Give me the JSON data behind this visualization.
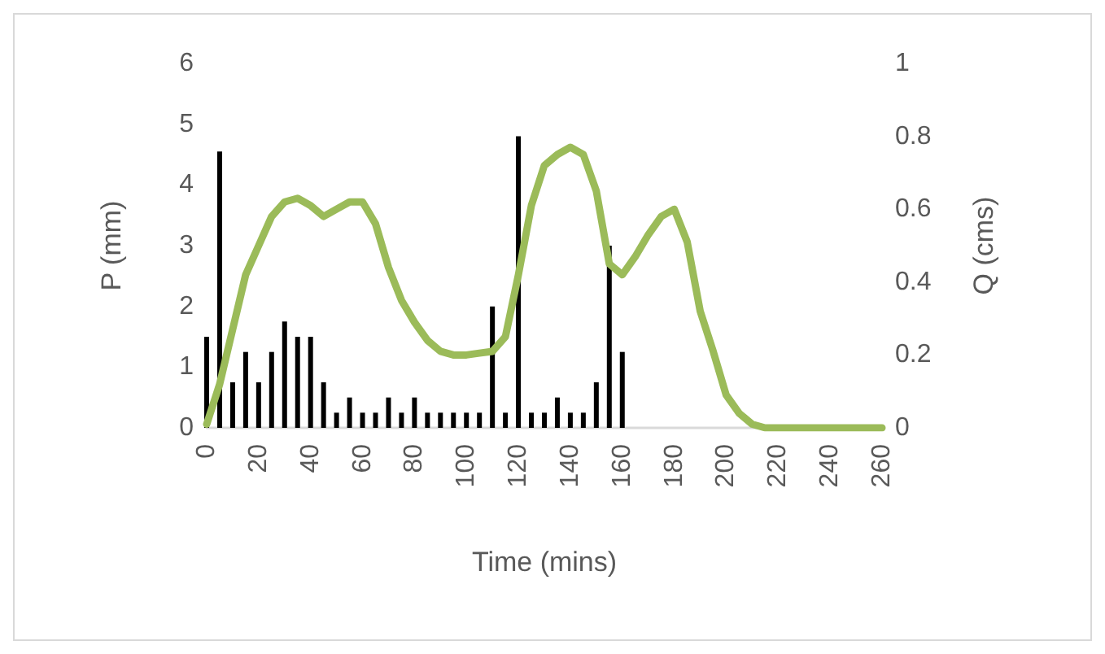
{
  "chart_data": {
    "type": "bar",
    "xlabel": "Time (mins)",
    "ylabel": "P (mm)",
    "y2label": "Q (cms)",
    "xlim": [
      0,
      260
    ],
    "xticks": [
      0,
      20,
      40,
      60,
      80,
      100,
      120,
      140,
      160,
      180,
      200,
      220,
      240,
      260
    ],
    "ylim": [
      0,
      6
    ],
    "yticks": [
      0,
      1,
      2,
      3,
      4,
      5,
      6
    ],
    "y2lim": [
      0,
      1
    ],
    "y2ticks": [
      0,
      0.2,
      0.4,
      0.6,
      0.8,
      1
    ],
    "grid": false,
    "marker": "none",
    "line_style": "solid",
    "series": [
      {
        "color": "#000000",
        "x": [
          0,
          5,
          10,
          15,
          20,
          25,
          30,
          35,
          40,
          45,
          50,
          55,
          60,
          65,
          70,
          75,
          80,
          85,
          90,
          95,
          100,
          105,
          110,
          115,
          120,
          125,
          130,
          135,
          140,
          145,
          150,
          155,
          160
        ],
        "values": [
          1.5,
          4.55,
          0.75,
          1.25,
          0.75,
          1.25,
          1.75,
          1.5,
          1.5,
          0.75,
          0.25,
          0.5,
          0.25,
          0.25,
          0.5,
          0.25,
          0.5,
          0.25,
          0.25,
          0.25,
          0.25,
          0.25,
          2.0,
          0.25,
          4.8,
          0.25,
          0.25,
          0.5,
          0.25,
          0.25,
          0.75,
          3.0,
          1.25
        ]
      },
      {
        "type": "line",
        "axis": "y2",
        "color": "#9bbb59",
        "x": [
          0,
          5,
          10,
          15,
          20,
          25,
          30,
          35,
          40,
          45,
          50,
          55,
          60,
          65,
          70,
          75,
          80,
          85,
          90,
          95,
          100,
          105,
          110,
          115,
          120,
          125,
          130,
          135,
          140,
          145,
          150,
          155,
          160,
          165,
          170,
          175,
          180,
          185,
          190,
          195,
          200,
          205,
          210,
          215,
          220,
          225,
          230,
          235,
          240,
          245,
          250,
          255,
          260
        ],
        "values": [
          0.01,
          0.12,
          0.27,
          0.42,
          0.5,
          0.58,
          0.62,
          0.63,
          0.61,
          0.58,
          0.6,
          0.62,
          0.62,
          0.56,
          0.44,
          0.35,
          0.29,
          0.24,
          0.21,
          0.2,
          0.2,
          0.205,
          0.21,
          0.25,
          0.42,
          0.61,
          0.72,
          0.75,
          0.77,
          0.75,
          0.65,
          0.45,
          0.42,
          0.47,
          0.53,
          0.58,
          0.6,
          0.51,
          0.32,
          0.21,
          0.09,
          0.04,
          0.01,
          0,
          0,
          0,
          0,
          0,
          0,
          0,
          0,
          0,
          0
        ]
      }
    ]
  }
}
